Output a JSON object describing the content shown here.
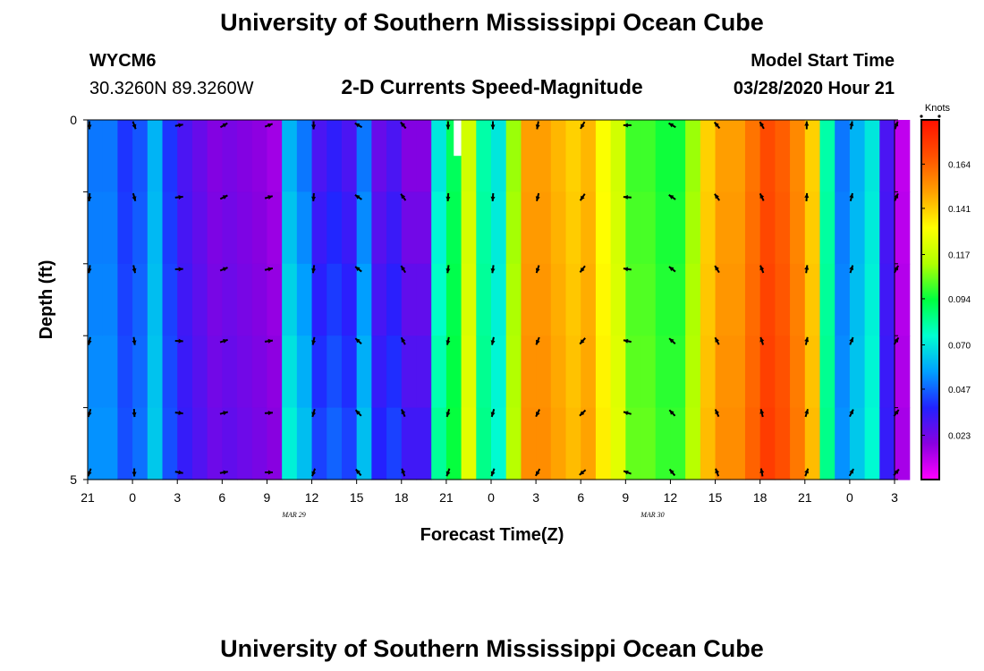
{
  "header": {
    "title": "University of Southern Mississippi Ocean Cube",
    "station": "WYCM6",
    "coords": "30.3260N 89.3260W",
    "chart_title": "2-D Currents Speed-Magnitude",
    "model_label": "Model Start Time",
    "model_time": "03/28/2020 Hour 21"
  },
  "footer": {
    "title": "University of Southern Mississippi Ocean Cube"
  },
  "chart_data": {
    "type": "heatmap",
    "title": "2-D Currents Speed-Magnitude",
    "xlabel": "Forecast Time(Z)",
    "ylabel": "Depth (ft)",
    "units": "Knots",
    "x_hours": [
      0,
      54
    ],
    "y_range": [
      0,
      5
    ],
    "x_ticks": [
      "21",
      "0",
      "3",
      "6",
      "9",
      "12",
      "15",
      "18",
      "21",
      "0",
      "3",
      "6",
      "9",
      "12",
      "15",
      "18",
      "21",
      "0",
      "3"
    ],
    "y_ticks": [
      "0",
      "5"
    ],
    "date_labels": [
      {
        "text": "MAR  29",
        "hour": 15
      },
      {
        "text": "MAR  30",
        "hour": 39
      }
    ],
    "colorbar": {
      "min": 0,
      "max": 0.187,
      "ticks": [
        "0.164",
        "0.141",
        "0.117",
        "0.094",
        "0.070",
        "0.047",
        "0.023"
      ],
      "tick_values": [
        0.164,
        0.141,
        0.117,
        0.094,
        0.07,
        0.047,
        0.023
      ]
    },
    "colors": [
      "#ff00ff",
      "#8a00e0",
      "#2222ff",
      "#00a0ff",
      "#00ffd0",
      "#00ff40",
      "#b0ff00",
      "#ffff00",
      "#ffa000",
      "#ff5000",
      "#ff1000"
    ],
    "cell_hours": 1,
    "cell_layers": 5,
    "profile_values": [
      0.05,
      0.05,
      0.04,
      0.045,
      0.06,
      0.04,
      0.03,
      0.025,
      0.02,
      0.022,
      0.02,
      0.018,
      0.015,
      0.06,
      0.05,
      0.03,
      0.035,
      0.03,
      0.05,
      0.025,
      0.03,
      0.02,
      0.02,
      0.07,
      0.09,
      0.12,
      0.08,
      0.07,
      0.11,
      0.15,
      0.15,
      0.145,
      0.14,
      0.145,
      0.13,
      0.12,
      0.1,
      0.1,
      0.095,
      0.095,
      0.11,
      0.14,
      0.15,
      0.15,
      0.16,
      0.17,
      0.165,
      0.155,
      0.14,
      0.08,
      0.05,
      0.06,
      0.07,
      0.03,
      0.01
    ],
    "layer_offsets": [
      [
        0,
        0,
        0,
        0,
        0
      ],
      [
        0,
        0.005,
        0.008,
        0.01,
        0.012
      ]
    ],
    "vectors": {
      "hours": [
        0,
        3,
        6,
        9,
        12,
        15,
        18,
        21,
        24,
        27,
        30,
        33,
        36,
        39,
        42,
        45,
        48,
        51,
        54
      ],
      "depths": [
        0,
        1,
        2,
        3,
        4,
        5
      ],
      "direction_deg_by_hour": [
        180,
        160,
        80,
        60,
        70,
        180,
        300,
        320,
        180,
        180,
        190,
        210,
        270,
        300,
        320,
        330,
        0,
        10,
        20
      ]
    },
    "gap_cells": [
      {
        "hour": 24.5,
        "depth_from": 0,
        "depth_to": 0.5
      }
    ]
  }
}
